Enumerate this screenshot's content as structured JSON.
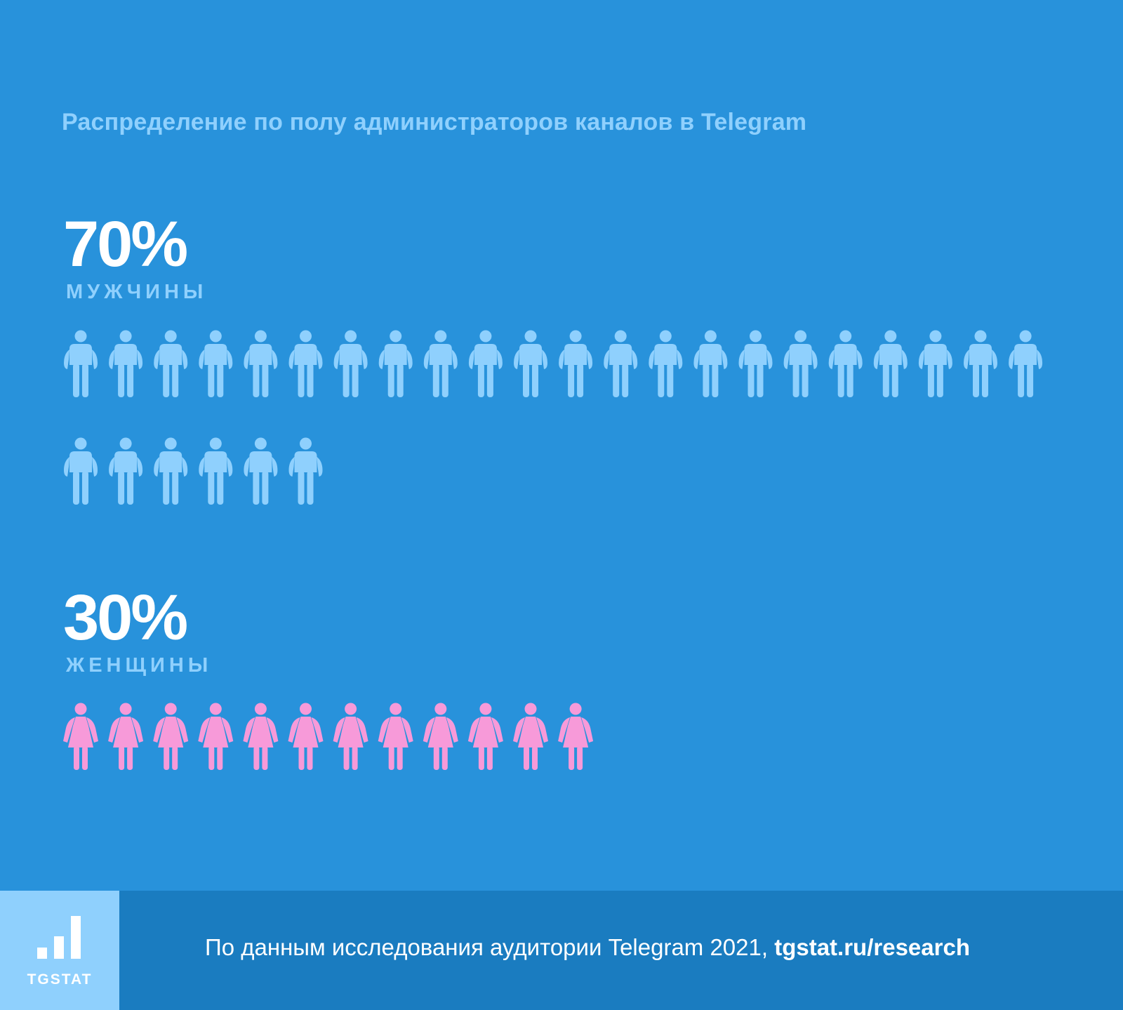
{
  "title": "Распределение по полу администраторов каналов в Telegram",
  "chart_data": {
    "type": "pictogram",
    "title": "Распределение по полу администраторов каналов в Telegram",
    "series": [
      {
        "name": "мужчины",
        "percent": "70%",
        "value": 70,
        "icons": 28,
        "color": "#8fd0fd"
      },
      {
        "name": "женщины",
        "percent": "30%",
        "value": 30,
        "icons": 12,
        "color": "#f79ad9"
      }
    ]
  },
  "footer": {
    "logo_text": "TGSTAT",
    "source_text": "По данным исследования аудитории Telegram 2021, ",
    "source_link": "tgstat.ru/research"
  },
  "colors": {
    "background": "#2892db",
    "footer": "#1a7cc0",
    "accent": "#8fd0fd",
    "female": "#f79ad9"
  }
}
